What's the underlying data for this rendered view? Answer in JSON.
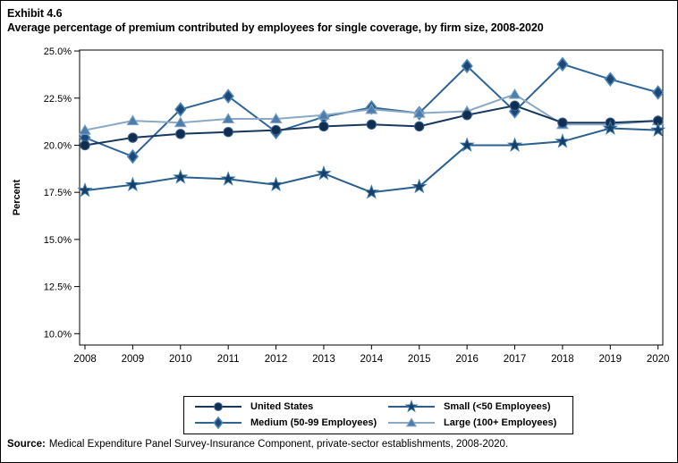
{
  "header": {
    "exhibit": "Exhibit 4.6",
    "title": "Average percentage of premium contributed by employees for single coverage, by firm size, 2008-2020"
  },
  "chart_data": {
    "type": "line",
    "title": "Average percentage of premium contributed by employees for single coverage, by firm size, 2008-2020",
    "xlabel": "",
    "ylabel": "Percent",
    "categories": [
      "2008",
      "2009",
      "2010",
      "2011",
      "2012",
      "2013",
      "2014",
      "2015",
      "2016",
      "2017",
      "2018",
      "2019",
      "2020"
    ],
    "ylim": [
      10.0,
      25.0
    ],
    "ytick_values": [
      25.0,
      22.5,
      20.0,
      17.5,
      15.0,
      12.5,
      10.0
    ],
    "ytick_labels": [
      "25.0%",
      "22.5%",
      "20.0%",
      "17.5%",
      "15.0%",
      "12.5%",
      "10.0%"
    ],
    "grid": false,
    "legend_position": "bottom",
    "series": [
      {
        "name": "United States",
        "marker": "circle",
        "line_color": "#17375e",
        "fill": "#112e51",
        "edge": "#35618f",
        "values": [
          20.0,
          20.4,
          20.6,
          20.7,
          20.8,
          21.0,
          21.1,
          21.0,
          21.6,
          22.1,
          21.2,
          21.2,
          21.3
        ]
      },
      {
        "name": "Medium (50-99 Employees)",
        "marker": "diamond",
        "line_color": "#2e6496",
        "fill": "#1d4875",
        "edge": "#4d86b8",
        "values": [
          20.4,
          19.4,
          21.9,
          22.6,
          20.7,
          21.5,
          22.0,
          21.7,
          24.2,
          21.8,
          24.3,
          23.5,
          22.8
        ]
      },
      {
        "name": "Small (<50 Employees)",
        "marker": "star",
        "line_color": "#2a5f8f",
        "fill": "#163f68",
        "edge": "#3a77a8",
        "values": [
          17.6,
          17.9,
          18.3,
          18.2,
          17.9,
          18.5,
          17.5,
          17.8,
          20.0,
          20.0,
          20.2,
          20.9,
          20.8
        ]
      },
      {
        "name": "Large (100+ Employees)",
        "marker": "triangle",
        "line_color": "#8aa9c6",
        "fill": "#4d7dab",
        "edge": "#86a8c8",
        "values": [
          20.8,
          21.3,
          21.2,
          21.4,
          21.4,
          21.6,
          21.9,
          21.7,
          21.8,
          22.7,
          21.1,
          21.1,
          21.3
        ]
      }
    ]
  },
  "legend": {
    "columns": [
      [
        "United States",
        "Medium (50-99 Employees)"
      ],
      [
        "Small (<50 Employees)",
        "Large (100+ Employees)"
      ]
    ]
  },
  "source": {
    "label": "Source:",
    "text": "Medical Expenditure Panel Survey-Insurance Component, private-sector establishments, 2008-2020."
  }
}
